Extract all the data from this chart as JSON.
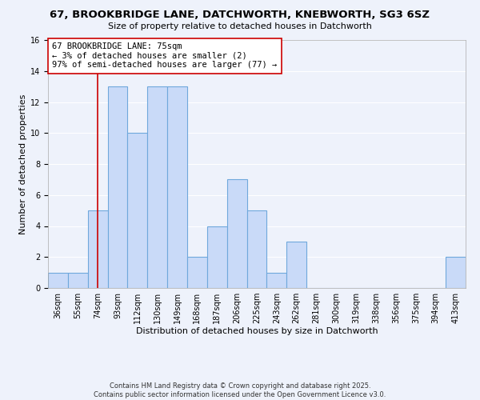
{
  "title": "67, BROOKBRIDGE LANE, DATCHWORTH, KNEBWORTH, SG3 6SZ",
  "subtitle": "Size of property relative to detached houses in Datchworth",
  "xlabel": "Distribution of detached houses by size in Datchworth",
  "ylabel": "Number of detached properties",
  "bin_labels": [
    "36sqm",
    "55sqm",
    "74sqm",
    "93sqm",
    "112sqm",
    "130sqm",
    "149sqm",
    "168sqm",
    "187sqm",
    "206sqm",
    "225sqm",
    "243sqm",
    "262sqm",
    "281sqm",
    "300sqm",
    "319sqm",
    "338sqm",
    "356sqm",
    "375sqm",
    "394sqm",
    "413sqm"
  ],
  "bar_heights": [
    1,
    1,
    5,
    13,
    10,
    13,
    13,
    2,
    4,
    7,
    5,
    1,
    3,
    0,
    0,
    0,
    0,
    0,
    0,
    0,
    2
  ],
  "bar_color": "#c9daf8",
  "bar_edge_color": "#6fa8dc",
  "property_bin_index": 2,
  "property_line_color": "#cc0000",
  "annotation_line1": "67 BROOKBRIDGE LANE: 75sqm",
  "annotation_line2": "← 3% of detached houses are smaller (2)",
  "annotation_line3": "97% of semi-detached houses are larger (77) →",
  "annotation_box_color": "#ffffff",
  "annotation_box_edge_color": "#cc0000",
  "ylim": [
    0,
    16
  ],
  "yticks": [
    0,
    2,
    4,
    6,
    8,
    10,
    12,
    14,
    16
  ],
  "background_color": "#eef2fb",
  "grid_color": "#ffffff",
  "footer_line1": "Contains HM Land Registry data © Crown copyright and database right 2025.",
  "footer_line2": "Contains public sector information licensed under the Open Government Licence v3.0.",
  "title_fontsize": 9.5,
  "subtitle_fontsize": 8,
  "axis_label_fontsize": 8,
  "tick_fontsize": 7,
  "annotation_fontsize": 7.5,
  "footer_fontsize": 6
}
